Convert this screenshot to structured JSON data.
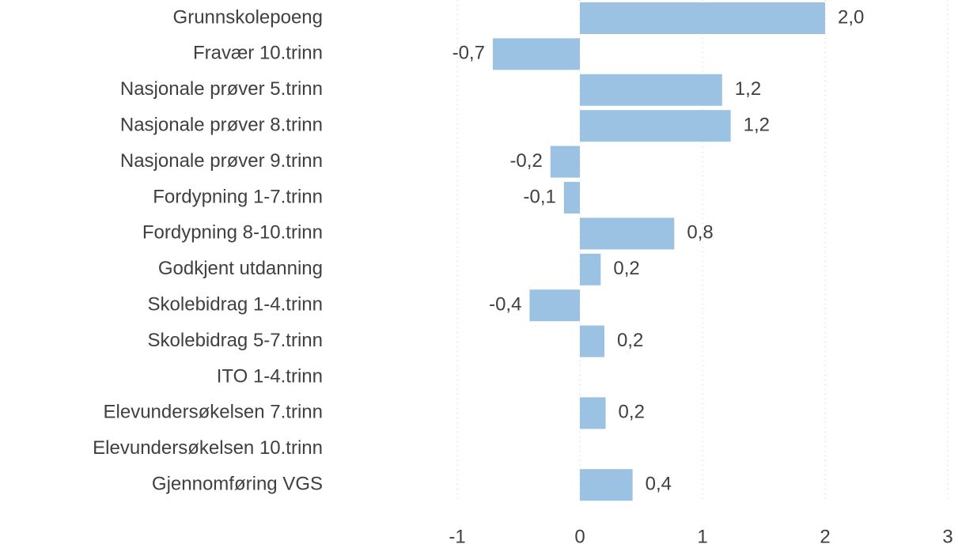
{
  "chart_data": {
    "type": "barh",
    "categories": [
      "Grunnskolepoeng",
      "Fravær 10.trinn",
      "Nasjonale prøver 5.trinn",
      "Nasjonale prøver 8.trinn",
      "Nasjonale prøver 9.trinn",
      "Fordypning 1-7.trinn",
      "Fordypning 8-10.trinn",
      "Godkjent utdanning",
      "Skolebidrag 1-4.trinn",
      "Skolebidrag 5-7.trinn",
      "ITO 1-4.trinn",
      "Elevundersøkelsen 7.trinn",
      "Elevundersøkelsen 10.trinn",
      "Gjennomføring VGS"
    ],
    "values": [
      2.0,
      -0.71,
      1.16,
      1.23,
      -0.24,
      -0.13,
      0.77,
      0.17,
      -0.41,
      0.2,
      null,
      0.21,
      null,
      0.43
    ],
    "value_labels": [
      "2,0",
      "-0,7",
      "1,2",
      "1,2",
      "-0,2",
      "-0,1",
      "0,8",
      "0,2",
      "-0,4",
      "0,2",
      null,
      "0,2",
      null,
      "0,4"
    ],
    "color": "#9bc2e3",
    "xlim": [
      -1,
      3
    ],
    "xticks": [
      -1,
      0,
      1,
      2,
      3
    ],
    "grid": true
  }
}
